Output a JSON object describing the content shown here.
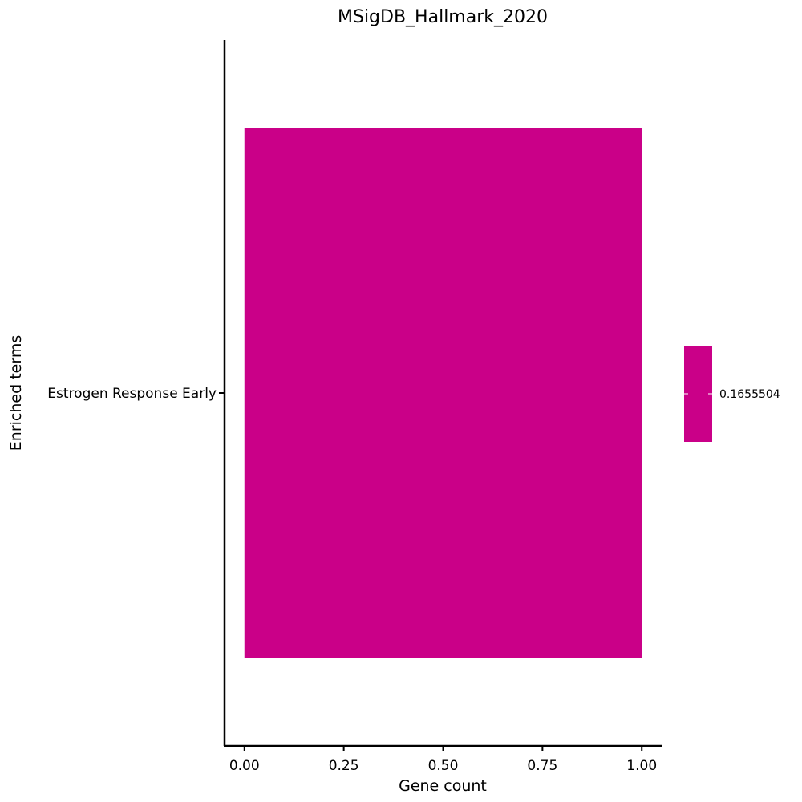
{
  "chart_data": {
    "type": "bar",
    "orientation": "horizontal",
    "title": "MSigDB_Hallmark_2020",
    "xlabel": "Gene count",
    "ylabel": "Enriched terms",
    "categories": [
      "Estrogen Response Early"
    ],
    "values": [
      1
    ],
    "xlim": [
      -0.05,
      1.05
    ],
    "xticks": [
      0,
      0.25,
      0.5,
      0.75,
      1.0
    ],
    "xtick_labels": [
      "0.00",
      "0.25",
      "0.50",
      "0.75",
      "1.00"
    ],
    "grid": false,
    "bar_color": "#CA0088",
    "colorbar": {
      "color": "#CA0088",
      "tick_labels": [
        "0.1655504"
      ]
    }
  }
}
